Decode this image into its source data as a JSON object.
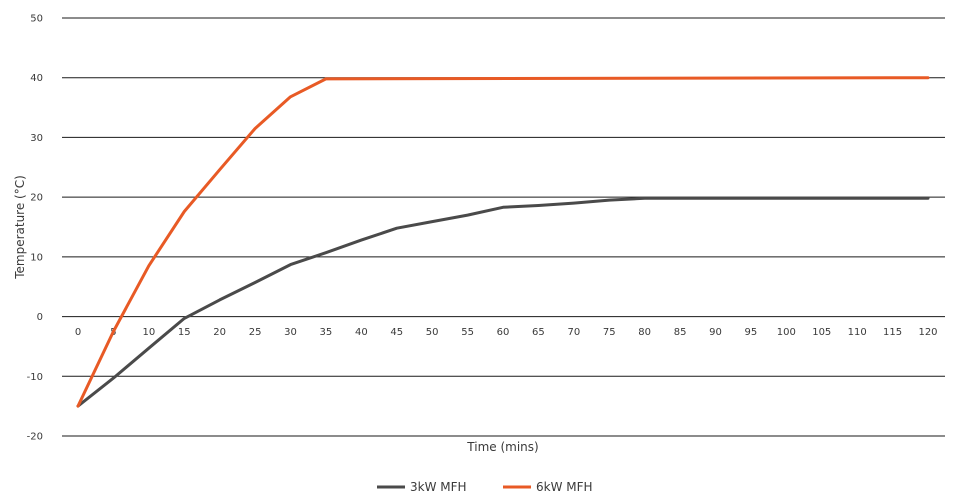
{
  "chart_data": {
    "type": "line",
    "title": "",
    "xlabel": "Time (mins)",
    "ylabel": "Temperature (°C)",
    "xlim": [
      0,
      120
    ],
    "ylim": [
      -20,
      50
    ],
    "x_ticks": [
      "0",
      "5",
      "10",
      "15",
      "20",
      "25",
      "30",
      "35",
      "40",
      "45",
      "50",
      "55",
      "60",
      "65",
      "70",
      "75",
      "80",
      "85",
      "90",
      "95",
      "100",
      "105",
      "110",
      "115",
      "120"
    ],
    "y_ticks": [
      "50",
      "40",
      "30",
      "20",
      "10",
      "0",
      "-10",
      "-20"
    ],
    "grid": "horizontal",
    "legend_position": "bottom-center",
    "series": [
      {
        "name": "3kW MFH",
        "color": "#4a4a4a",
        "points": [
          [
            0,
            -15
          ],
          [
            5,
            -10.3
          ],
          [
            10,
            -5.3
          ],
          [
            15,
            -0.3
          ],
          [
            20,
            2.8
          ],
          [
            25,
            5.7
          ],
          [
            30,
            8.7
          ],
          [
            35,
            10.7
          ],
          [
            40,
            12.8
          ],
          [
            45,
            14.8
          ],
          [
            50,
            15.9
          ],
          [
            55,
            17
          ],
          [
            60,
            18.3
          ],
          [
            65,
            18.6
          ],
          [
            70,
            19
          ],
          [
            75,
            19.5
          ],
          [
            80,
            19.8
          ],
          [
            120,
            19.8
          ]
        ]
      },
      {
        "name": "6kW MFH",
        "color": "#e85a25",
        "points": [
          [
            0,
            -15
          ],
          [
            5,
            -2.5
          ],
          [
            10,
            8.5
          ],
          [
            15,
            17.6
          ],
          [
            20,
            24.6
          ],
          [
            25,
            31.5
          ],
          [
            30,
            36.8
          ],
          [
            35,
            39.8
          ],
          [
            120,
            40
          ]
        ]
      }
    ]
  }
}
